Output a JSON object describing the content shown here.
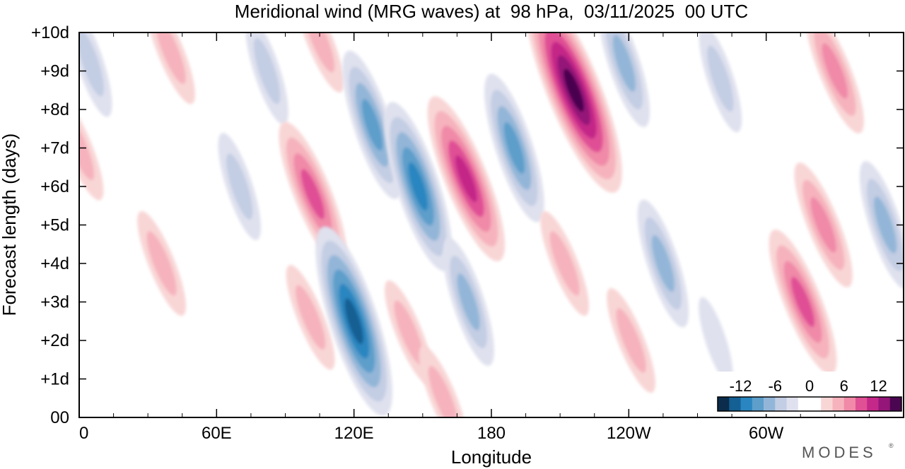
{
  "chart_data": {
    "type": "heatmap",
    "title": "Meridional wind (MRG waves) at  98 hPa,  03/11/2025  00 UTC",
    "xlabel": "Longitude",
    "ylabel": "Forecast length (days)",
    "x_range_deg_east": [
      0,
      360
    ],
    "y_range_days": [
      0,
      10
    ],
    "x_ticks": [
      {
        "lon": 0,
        "label": "0"
      },
      {
        "lon": 60,
        "label": "60E"
      },
      {
        "lon": 120,
        "label": "120E"
      },
      {
        "lon": 180,
        "label": "180"
      },
      {
        "lon": 240,
        "label": "120W"
      },
      {
        "lon": 300,
        "label": "60W"
      }
    ],
    "x_minor_step_deg": 15,
    "y_ticks": [
      {
        "day": 0,
        "label": "00"
      },
      {
        "day": 1,
        "label": "+1d"
      },
      {
        "day": 2,
        "label": "+2d"
      },
      {
        "day": 3,
        "label": "+3d"
      },
      {
        "day": 4,
        "label": "+4d"
      },
      {
        "day": 5,
        "label": "+5d"
      },
      {
        "day": 6,
        "label": "+6d"
      },
      {
        "day": 7,
        "label": "+7d"
      },
      {
        "day": 8,
        "label": "+8d"
      },
      {
        "day": 9,
        "label": "+9d"
      },
      {
        "day": 10,
        "label": "+10d"
      }
    ],
    "colorbar": {
      "tick_labels": [
        "-12",
        "-6",
        "0",
        "6",
        "12"
      ],
      "tick_values": [
        -12,
        -6,
        0,
        6,
        12
      ],
      "bin_width": 2,
      "colors": [
        "#0b2c4a",
        "#145f93",
        "#2a86c0",
        "#5d9ecb",
        "#93b6d8",
        "#c3cde3",
        "#dfe1ee",
        "#ffffff",
        "#ffffff",
        "#f9d6d6",
        "#f6b3bd",
        "#f08aa8",
        "#e05095",
        "#c42888",
        "#941678",
        "#4a0650"
      ]
    },
    "features": [
      {
        "sign": "negative",
        "lon": 5,
        "day": 9.2,
        "max_abs": 4
      },
      {
        "sign": "positive",
        "lon": 40,
        "day": 9.5,
        "max_abs": 4
      },
      {
        "sign": "positive",
        "lon": 0,
        "day": 7.0,
        "max_abs": 4
      },
      {
        "sign": "positive",
        "lon": 36,
        "day": 4.0,
        "max_abs": 4
      },
      {
        "sign": "negative",
        "lon": 70,
        "day": 6.0,
        "max_abs": 4
      },
      {
        "sign": "negative",
        "lon": 82,
        "day": 9.0,
        "max_abs": 4
      },
      {
        "sign": "positive",
        "lon": 105,
        "day": 9.8,
        "max_abs": 4
      },
      {
        "sign": "positive",
        "lon": 102,
        "day": 5.8,
        "max_abs": 8
      },
      {
        "sign": "positive",
        "lon": 101,
        "day": 2.6,
        "max_abs": 4
      },
      {
        "sign": "negative",
        "lon": 128,
        "day": 7.6,
        "max_abs": 8
      },
      {
        "sign": "negative",
        "lon": 148,
        "day": 6.0,
        "max_abs": 10
      },
      {
        "sign": "negative",
        "lon": 120,
        "day": 2.5,
        "max_abs": 12
      },
      {
        "sign": "positive",
        "lon": 144,
        "day": 2.2,
        "max_abs": 4
      },
      {
        "sign": "positive",
        "lon": 159,
        "day": 0.5,
        "max_abs": 4
      },
      {
        "sign": "negative",
        "lon": 170,
        "day": 3.0,
        "max_abs": 6
      },
      {
        "sign": "positive",
        "lon": 169,
        "day": 6.2,
        "max_abs": 10
      },
      {
        "sign": "negative",
        "lon": 190,
        "day": 7.0,
        "max_abs": 8
      },
      {
        "sign": "positive",
        "lon": 216,
        "day": 8.5,
        "max_abs": 14
      },
      {
        "sign": "positive",
        "lon": 212,
        "day": 4.0,
        "max_abs": 4
      },
      {
        "sign": "positive",
        "lon": 241,
        "day": 2.0,
        "max_abs": 4
      },
      {
        "sign": "negative",
        "lon": 238,
        "day": 9.2,
        "max_abs": 6
      },
      {
        "sign": "negative",
        "lon": 255,
        "day": 4.0,
        "max_abs": 6
      },
      {
        "sign": "negative",
        "lon": 278,
        "day": 2.0,
        "max_abs": 2
      },
      {
        "sign": "negative",
        "lon": 280,
        "day": 8.8,
        "max_abs": 4
      },
      {
        "sign": "positive",
        "lon": 316,
        "day": 3.0,
        "max_abs": 8
      },
      {
        "sign": "positive",
        "lon": 325,
        "day": 5.0,
        "max_abs": 6
      },
      {
        "sign": "positive",
        "lon": 330,
        "day": 9.0,
        "max_abs": 6
      },
      {
        "sign": "negative",
        "lon": 352,
        "day": 5.0,
        "max_abs": 6
      }
    ]
  },
  "branding": {
    "logo_text": "MODES"
  }
}
